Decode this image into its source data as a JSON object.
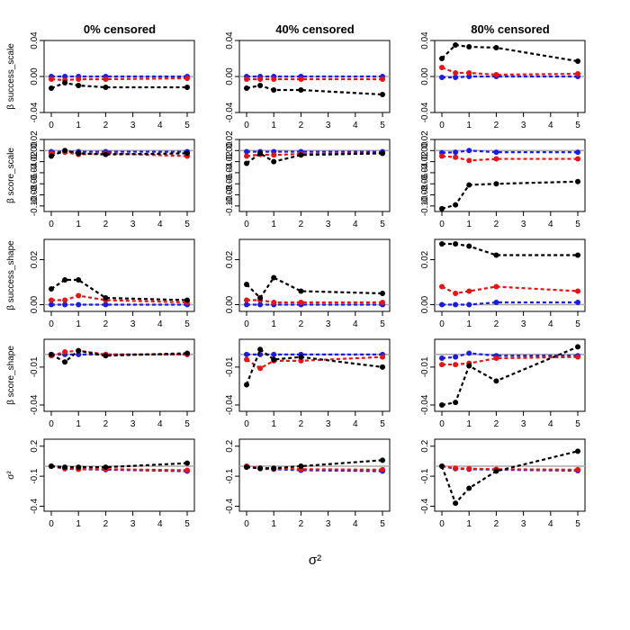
{
  "figure": {
    "column_titles": [
      "0% censored",
      "40% censored",
      "80% censored"
    ],
    "row_labels": [
      "β success_scale",
      "β score_scale",
      "β success_shape",
      "β score_shape",
      "σ²"
    ],
    "x_axis_label": "σ²",
    "series_colors": {
      "black": "#000000",
      "red": "#ee1111",
      "blue": "#1a1aee",
      "reference": "#aaaaaa"
    }
  },
  "chart_data": {
    "type": "line",
    "x": [
      0,
      0.5,
      1,
      2,
      5
    ],
    "x_ticks": [
      0,
      1,
      2,
      3,
      4,
      5
    ],
    "xlim": [
      0,
      5
    ],
    "xlabel": "σ²",
    "rows": [
      {
        "ylabel": "β success_scale",
        "ylim": [
          -0.04,
          0.04
        ],
        "y_ticks": [
          -0.04,
          0.0,
          0.04
        ],
        "y_tick_labels": [
          "-0.04",
          "0.00",
          "0.04"
        ],
        "panels": [
          {
            "title": "0% censored",
            "series": [
              {
                "name": "black",
                "values": [
                  -0.013,
                  -0.007,
                  -0.01,
                  -0.012,
                  -0.012
                ]
              },
              {
                "name": "red",
                "values": [
                  -0.003,
                  -0.004,
                  -0.003,
                  -0.003,
                  -0.002
                ]
              },
              {
                "name": "blue",
                "values": [
                  0.0,
                  0.0,
                  0.0,
                  0.0,
                  0.0
                ]
              }
            ]
          },
          {
            "title": "40% censored",
            "series": [
              {
                "name": "black",
                "values": [
                  -0.013,
                  -0.01,
                  -0.015,
                  -0.015,
                  -0.02
                ]
              },
              {
                "name": "red",
                "values": [
                  -0.003,
                  -0.003,
                  -0.003,
                  -0.003,
                  -0.003
                ]
              },
              {
                "name": "blue",
                "values": [
                  0.0,
                  0.0,
                  0.0,
                  0.0,
                  0.0
                ]
              }
            ]
          },
          {
            "title": "80% censored",
            "series": [
              {
                "name": "black",
                "values": [
                  0.02,
                  0.035,
                  0.033,
                  0.032,
                  0.017
                ]
              },
              {
                "name": "red",
                "values": [
                  0.01,
                  0.004,
                  0.004,
                  0.002,
                  0.003
                ]
              },
              {
                "name": "blue",
                "values": [
                  -0.001,
                  -0.001,
                  0.0,
                  0.0,
                  0.0
                ]
              }
            ]
          }
        ]
      },
      {
        "ylabel": "β score_scale",
        "ylim": [
          -0.11,
          0.02
        ],
        "y_ticks": [
          0.02,
          0.0,
          -0.02,
          -0.04,
          -0.06,
          -0.08,
          -0.1
        ],
        "y_tick_labels": [
          "0.02",
          "0.00",
          "-0.02",
          "-0.04",
          "-0.06",
          "-0.08",
          "-0.10"
        ],
        "panels": [
          {
            "title": "0% censored",
            "series": [
              {
                "name": "black",
                "values": [
                  -0.01,
                  0.0,
                  -0.005,
                  -0.007,
                  -0.005
                ]
              },
              {
                "name": "red",
                "values": [
                  -0.005,
                  -0.003,
                  -0.007,
                  -0.005,
                  -0.01
                ]
              },
              {
                "name": "blue",
                "values": [
                  -0.002,
                  -0.002,
                  -0.002,
                  -0.002,
                  -0.002
                ]
              }
            ]
          },
          {
            "title": "40% censored",
            "series": [
              {
                "name": "black",
                "values": [
                  -0.023,
                  -0.005,
                  -0.02,
                  -0.008,
                  -0.005
                ]
              },
              {
                "name": "red",
                "values": [
                  -0.01,
                  -0.007,
                  -0.008,
                  -0.006,
                  -0.005
                ]
              },
              {
                "name": "blue",
                "values": [
                  -0.002,
                  -0.002,
                  -0.002,
                  -0.002,
                  -0.002
                ]
              }
            ]
          },
          {
            "title": "80% censored",
            "series": [
              {
                "name": "black",
                "values": [
                  -0.105,
                  -0.098,
                  -0.062,
                  -0.06,
                  -0.056
                ]
              },
              {
                "name": "red",
                "values": [
                  -0.01,
                  -0.012,
                  -0.018,
                  -0.015,
                  -0.015
                ]
              },
              {
                "name": "blue",
                "values": [
                  -0.004,
                  -0.003,
                  0.0,
                  -0.003,
                  -0.003
                ]
              }
            ]
          }
        ]
      },
      {
        "ylabel": "β success_shape",
        "ylim": [
          -0.003,
          0.029
        ],
        "y_ticks": [
          0.0,
          0.02
        ],
        "y_tick_labels": [
          "0.00",
          "0.02"
        ],
        "panels": [
          {
            "title": "0% censored",
            "series": [
              {
                "name": "black",
                "values": [
                  0.007,
                  0.011,
                  0.011,
                  0.003,
                  0.002
                ]
              },
              {
                "name": "red",
                "values": [
                  0.002,
                  0.002,
                  0.004,
                  0.002,
                  0.001
                ]
              },
              {
                "name": "blue",
                "values": [
                  0.0,
                  0.0,
                  0.0,
                  0.0,
                  0.0
                ]
              }
            ]
          },
          {
            "title": "40% censored",
            "series": [
              {
                "name": "black",
                "values": [
                  0.009,
                  0.003,
                  0.012,
                  0.006,
                  0.005
                ]
              },
              {
                "name": "red",
                "values": [
                  0.002,
                  0.002,
                  0.001,
                  0.001,
                  0.001
                ]
              },
              {
                "name": "blue",
                "values": [
                  0.0,
                  0.0,
                  0.0,
                  0.0,
                  0.0
                ]
              }
            ]
          },
          {
            "title": "80% censored",
            "series": [
              {
                "name": "black",
                "values": [
                  0.027,
                  0.027,
                  0.026,
                  0.022,
                  0.022
                ]
              },
              {
                "name": "red",
                "values": [
                  0.008,
                  0.005,
                  0.006,
                  0.008,
                  0.006
                ]
              },
              {
                "name": "blue",
                "values": [
                  0.0,
                  0.0,
                  0.0,
                  0.001,
                  0.001
                ]
              }
            ]
          }
        ]
      },
      {
        "ylabel": "β score_shape",
        "ylim": [
          -0.045,
          0.012
        ],
        "y_ticks": [
          -0.01,
          -0.04
        ],
        "y_tick_labels": [
          "-0.01",
          "-0.04"
        ],
        "panels": [
          {
            "title": "0% censored",
            "series": [
              {
                "name": "black",
                "values": [
                  0.0,
                  -0.006,
                  0.003,
                  -0.001,
                  0.001
                ]
              },
              {
                "name": "red",
                "values": [
                  -0.001,
                  0.002,
                  0.003,
                  0.0,
                  0.0
                ]
              },
              {
                "name": "blue",
                "values": [
                  0.0,
                  0.0,
                  0.0,
                  0.0,
                  0.0
                ]
              }
            ]
          },
          {
            "title": "40% censored",
            "series": [
              {
                "name": "black",
                "values": [
                  -0.024,
                  0.004,
                  -0.004,
                  -0.002,
                  -0.01
                ]
              },
              {
                "name": "red",
                "values": [
                  -0.004,
                  -0.011,
                  -0.005,
                  -0.005,
                  -0.002
                ]
              },
              {
                "name": "blue",
                "values": [
                  0.0,
                  0.0,
                  0.0,
                  0.0,
                  0.0
                ]
              }
            ]
          },
          {
            "title": "80% censored",
            "series": [
              {
                "name": "black",
                "values": [
                  -0.04,
                  -0.038,
                  -0.009,
                  -0.021,
                  0.006
                ]
              },
              {
                "name": "red",
                "values": [
                  -0.008,
                  -0.008,
                  -0.007,
                  -0.003,
                  -0.002
                ]
              },
              {
                "name": "blue",
                "values": [
                  -0.003,
                  -0.002,
                  0.001,
                  -0.001,
                  -0.001
                ]
              }
            ]
          }
        ]
      },
      {
        "ylabel": "σ²",
        "ylim": [
          -0.45,
          0.27
        ],
        "y_ticks": [
          0.2,
          -0.1,
          -0.4
        ],
        "y_tick_labels": [
          "0.2",
          "-0.1",
          "-0.4"
        ],
        "panels": [
          {
            "title": "0% censored",
            "series": [
              {
                "name": "black",
                "values": [
                  0.0,
                  -0.01,
                  -0.01,
                  -0.01,
                  0.03
                ]
              },
              {
                "name": "red",
                "values": [
                  0.0,
                  -0.02,
                  -0.03,
                  -0.03,
                  -0.04
                ]
              },
              {
                "name": "blue",
                "values": [
                  0.0,
                  -0.025,
                  -0.03,
                  -0.035,
                  -0.05
                ]
              }
            ]
          },
          {
            "title": "40% censored",
            "series": [
              {
                "name": "black",
                "values": [
                  -0.01,
                  -0.02,
                  -0.02,
                  0.0,
                  0.06
                ]
              },
              {
                "name": "red",
                "values": [
                  0.0,
                  -0.02,
                  -0.025,
                  -0.03,
                  -0.035
                ]
              },
              {
                "name": "blue",
                "values": [
                  0.0,
                  -0.025,
                  -0.03,
                  -0.04,
                  -0.05
                ]
              }
            ]
          },
          {
            "title": "80% censored",
            "series": [
              {
                "name": "black",
                "values": [
                  0.0,
                  -0.37,
                  -0.22,
                  -0.05,
                  0.15
                ]
              },
              {
                "name": "red",
                "values": [
                  0.0,
                  -0.02,
                  -0.025,
                  -0.03,
                  -0.035
                ]
              },
              {
                "name": "blue",
                "values": [
                  0.0,
                  -0.025,
                  -0.03,
                  -0.035,
                  -0.045
                ]
              }
            ]
          }
        ]
      }
    ]
  }
}
